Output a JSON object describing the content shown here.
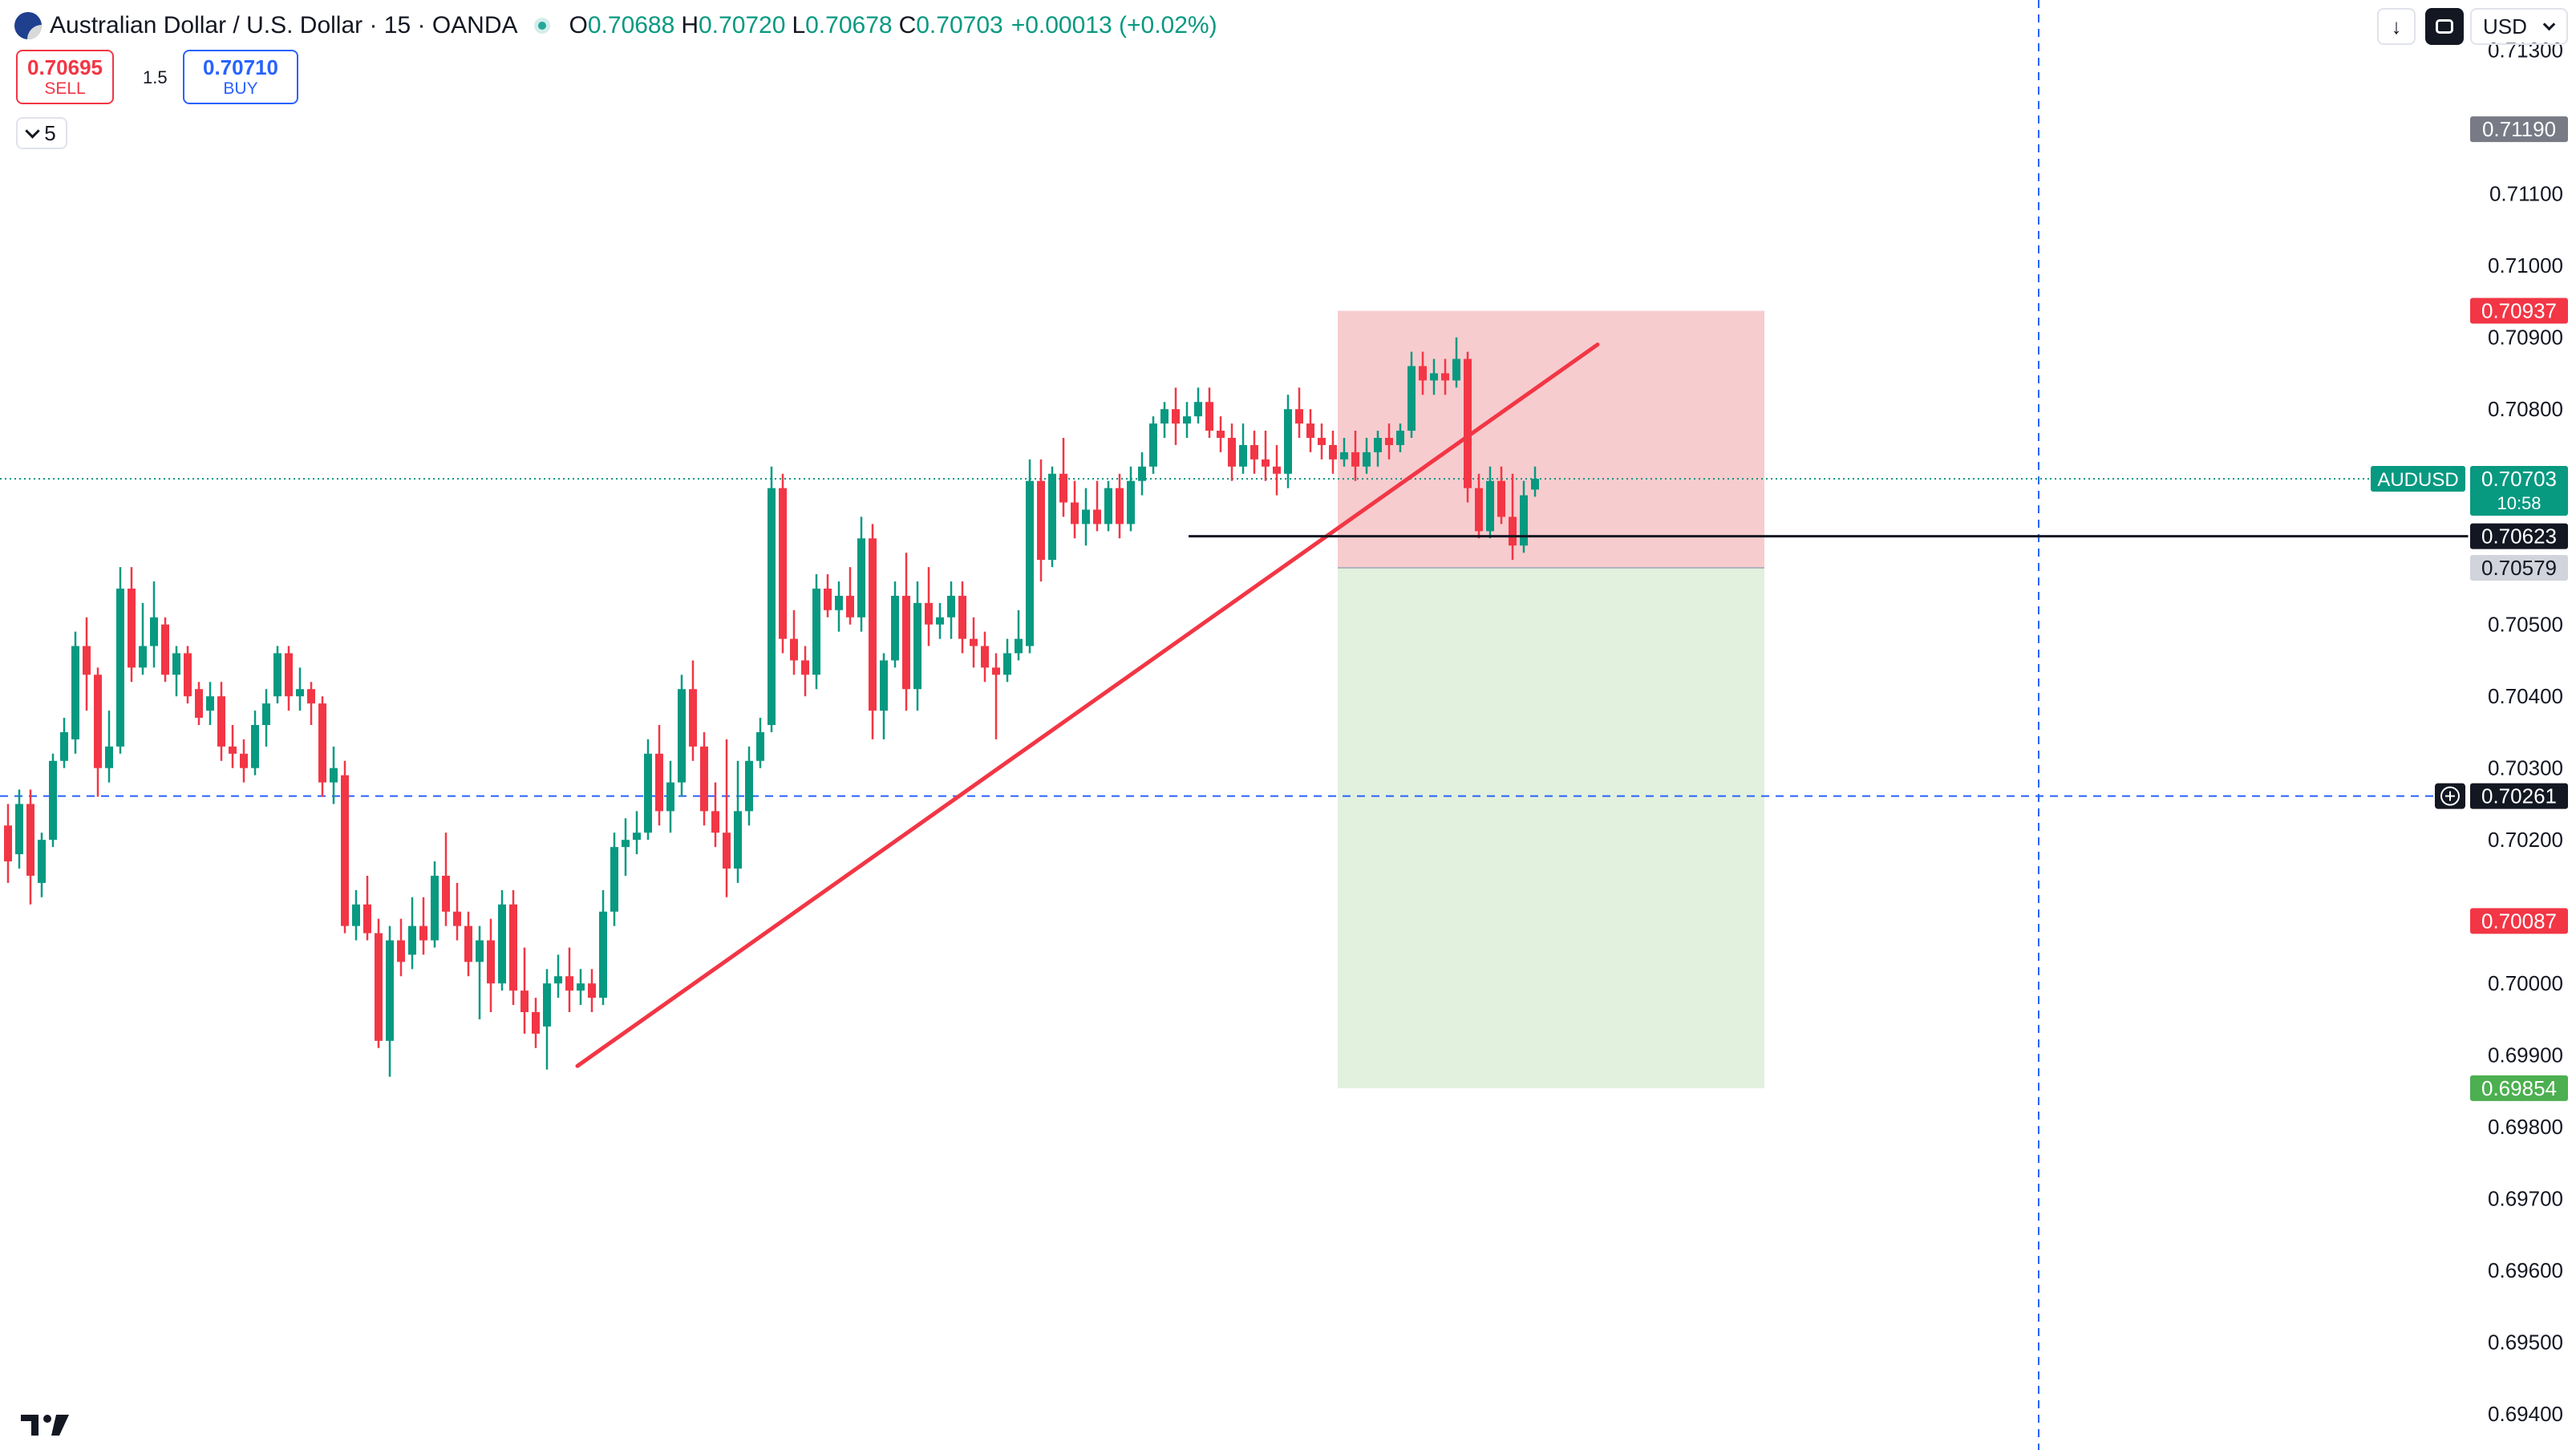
{
  "header": {
    "symbol_title": "Australian Dollar / U.S. Dollar · 15 · OANDA",
    "ohlc": [
      {
        "key": "O",
        "value": "0.70688"
      },
      {
        "key": "H",
        "value": "0.70720"
      },
      {
        "key": "L",
        "value": "0.70678"
      },
      {
        "key": "C",
        "value": "0.70703"
      }
    ],
    "change": "+0.00013 (+0.02%)"
  },
  "trade": {
    "sell_price": "0.70695",
    "sell_label": "SELL",
    "spread": "1.5",
    "buy_price": "0.70710",
    "buy_label": "BUY"
  },
  "indicators_collapse_count": "5",
  "toolbar": {
    "currency": "USD"
  },
  "chart_data": {
    "type": "candlestick",
    "y_ticks": [
      "0.71300",
      "0.71100",
      "0.71000",
      "0.70900",
      "0.70800",
      "0.70500",
      "0.70400",
      "0.70300",
      "0.70200",
      "0.70000",
      "0.69900",
      "0.69800",
      "0.69700",
      "0.69600",
      "0.69500",
      "0.69400"
    ],
    "ylim": [
      0.6935,
      0.7137
    ],
    "price_labels": [
      {
        "name": "alert",
        "value": "0.71190",
        "color": "#787b86"
      },
      {
        "name": "stop-loss",
        "value": "0.70937",
        "color": "#f23645"
      },
      {
        "name": "symbol",
        "symbol": "AUDUSD",
        "value": "0.70703",
        "countdown": "10:58",
        "color": "#089981"
      },
      {
        "name": "horizontal-line",
        "value": "0.70623",
        "color": "#131722"
      },
      {
        "name": "entry",
        "value": "0.70579",
        "color": "#d1d4dc"
      },
      {
        "name": "crosshair",
        "value": "0.70261",
        "color": "#131722"
      },
      {
        "name": "red-level",
        "value": "0.70087",
        "color": "#f23645"
      },
      {
        "name": "take-profit",
        "value": "0.69854",
        "color": "#4caf50"
      }
    ],
    "position": {
      "entry": 0.70579,
      "stop": 0.70937,
      "target": 0.69854,
      "start_index": 117,
      "end_index": 140
    },
    "trendline": {
      "from": {
        "index": 41,
        "price": 0.69885
      },
      "to": {
        "index": 115,
        "price": 0.7089
      }
    },
    "horizontal_line": {
      "price": 0.70623,
      "from_index": 86
    },
    "crosshair": {
      "price": 0.70261,
      "index": 148
    },
    "colors": {
      "up": "#089981",
      "down": "#f23645",
      "trendline": "#f23645"
    },
    "candles": [
      [
        0.7022,
        0.7025,
        0.7014,
        0.7017
      ],
      [
        0.7018,
        0.7027,
        0.7016,
        0.7025
      ],
      [
        0.7025,
        0.7027,
        0.7011,
        0.7015
      ],
      [
        0.7014,
        0.7021,
        0.7012,
        0.702
      ],
      [
        0.702,
        0.7032,
        0.7019,
        0.7031
      ],
      [
        0.7031,
        0.7037,
        0.703,
        0.7035
      ],
      [
        0.7034,
        0.7049,
        0.7032,
        0.7047
      ],
      [
        0.7047,
        0.7051,
        0.7038,
        0.7043
      ],
      [
        0.7043,
        0.7044,
        0.7026,
        0.703
      ],
      [
        0.703,
        0.7038,
        0.7028,
        0.7033
      ],
      [
        0.7033,
        0.7058,
        0.7032,
        0.7055
      ],
      [
        0.7055,
        0.7058,
        0.7042,
        0.7044
      ],
      [
        0.7044,
        0.7053,
        0.7043,
        0.7047
      ],
      [
        0.7047,
        0.7056,
        0.7044,
        0.7051
      ],
      [
        0.705,
        0.7051,
        0.7042,
        0.7043
      ],
      [
        0.7043,
        0.7047,
        0.704,
        0.7046
      ],
      [
        0.7046,
        0.7047,
        0.7039,
        0.704
      ],
      [
        0.7041,
        0.7042,
        0.7036,
        0.7037
      ],
      [
        0.7038,
        0.7042,
        0.7036,
        0.704
      ],
      [
        0.704,
        0.7042,
        0.7031,
        0.7033
      ],
      [
        0.7033,
        0.7036,
        0.703,
        0.7032
      ],
      [
        0.7032,
        0.7034,
        0.7028,
        0.703
      ],
      [
        0.703,
        0.7038,
        0.7029,
        0.7036
      ],
      [
        0.7036,
        0.7041,
        0.7033,
        0.7039
      ],
      [
        0.704,
        0.7047,
        0.7039,
        0.7046
      ],
      [
        0.7046,
        0.7047,
        0.7038,
        0.704
      ],
      [
        0.704,
        0.7044,
        0.7038,
        0.7041
      ],
      [
        0.7041,
        0.7042,
        0.7036,
        0.7039
      ],
      [
        0.7039,
        0.704,
        0.7026,
        0.7028
      ],
      [
        0.7028,
        0.7033,
        0.7025,
        0.703
      ],
      [
        0.7029,
        0.7031,
        0.7007,
        0.7008
      ],
      [
        0.7008,
        0.7013,
        0.7006,
        0.7011
      ],
      [
        0.7011,
        0.7015,
        0.7006,
        0.7007
      ],
      [
        0.7007,
        0.7009,
        0.6991,
        0.6992
      ],
      [
        0.6992,
        0.7008,
        0.6987,
        0.7006
      ],
      [
        0.7006,
        0.7009,
        0.7001,
        0.7003
      ],
      [
        0.7004,
        0.7012,
        0.7002,
        0.7008
      ],
      [
        0.7008,
        0.7012,
        0.7004,
        0.7006
      ],
      [
        0.7006,
        0.7017,
        0.7005,
        0.7015
      ],
      [
        0.7015,
        0.7021,
        0.7008,
        0.701
      ],
      [
        0.701,
        0.7014,
        0.7006,
        0.7008
      ],
      [
        0.7008,
        0.701,
        0.7001,
        0.7003
      ],
      [
        0.7003,
        0.7008,
        0.6995,
        0.7006
      ],
      [
        0.7006,
        0.7009,
        0.6996,
        0.7
      ],
      [
        0.7,
        0.7013,
        0.6999,
        0.7011
      ],
      [
        0.7011,
        0.7013,
        0.6997,
        0.6999
      ],
      [
        0.6999,
        0.7005,
        0.6993,
        0.6996
      ],
      [
        0.6996,
        0.6998,
        0.6991,
        0.6993
      ],
      [
        0.6994,
        0.7002,
        0.6988,
        0.7
      ],
      [
        0.7,
        0.7004,
        0.6998,
        0.7001
      ],
      [
        0.7001,
        0.7005,
        0.6996,
        0.6999
      ],
      [
        0.6999,
        0.7002,
        0.6997,
        0.7
      ],
      [
        0.7,
        0.7002,
        0.6996,
        0.6998
      ],
      [
        0.6998,
        0.7013,
        0.6997,
        0.701
      ],
      [
        0.701,
        0.7021,
        0.7008,
        0.7019
      ],
      [
        0.7019,
        0.7023,
        0.7015,
        0.702
      ],
      [
        0.702,
        0.7024,
        0.7018,
        0.7021
      ],
      [
        0.7021,
        0.7034,
        0.702,
        0.7032
      ],
      [
        0.7032,
        0.7036,
        0.7022,
        0.7024
      ],
      [
        0.7024,
        0.7031,
        0.7021,
        0.7028
      ],
      [
        0.7028,
        0.7043,
        0.7026,
        0.7041
      ],
      [
        0.7041,
        0.7045,
        0.7031,
        0.7033
      ],
      [
        0.7033,
        0.7035,
        0.7022,
        0.7024
      ],
      [
        0.7024,
        0.7028,
        0.7019,
        0.7021
      ],
      [
        0.7021,
        0.7034,
        0.7012,
        0.7016
      ],
      [
        0.7016,
        0.7031,
        0.7014,
        0.7024
      ],
      [
        0.7024,
        0.7033,
        0.7022,
        0.7031
      ],
      [
        0.7031,
        0.7037,
        0.703,
        0.7035
      ],
      [
        0.7036,
        0.7072,
        0.7035,
        0.7069
      ],
      [
        0.7069,
        0.7071,
        0.7046,
        0.7048
      ],
      [
        0.7048,
        0.7052,
        0.7043,
        0.7045
      ],
      [
        0.7045,
        0.7047,
        0.704,
        0.7043
      ],
      [
        0.7043,
        0.7057,
        0.7041,
        0.7055
      ],
      [
        0.7055,
        0.7057,
        0.7051,
        0.7052
      ],
      [
        0.7052,
        0.7056,
        0.7049,
        0.7054
      ],
      [
        0.7054,
        0.7058,
        0.705,
        0.7051
      ],
      [
        0.7051,
        0.7065,
        0.7049,
        0.7062
      ],
      [
        0.7062,
        0.7064,
        0.7034,
        0.7038
      ],
      [
        0.7038,
        0.7046,
        0.7034,
        0.7045
      ],
      [
        0.7045,
        0.7056,
        0.7044,
        0.7054
      ],
      [
        0.7054,
        0.706,
        0.7038,
        0.7041
      ],
      [
        0.7041,
        0.7056,
        0.7038,
        0.7053
      ],
      [
        0.7053,
        0.7058,
        0.7047,
        0.705
      ],
      [
        0.705,
        0.7053,
        0.7048,
        0.7051
      ],
      [
        0.7051,
        0.7056,
        0.7048,
        0.7054
      ],
      [
        0.7054,
        0.7056,
        0.7046,
        0.7048
      ],
      [
        0.7048,
        0.7051,
        0.7044,
        0.7047
      ],
      [
        0.7047,
        0.7049,
        0.7042,
        0.7044
      ],
      [
        0.7044,
        0.7046,
        0.7034,
        0.7043
      ],
      [
        0.7043,
        0.7048,
        0.7042,
        0.7046
      ],
      [
        0.7046,
        0.7052,
        0.7045,
        0.7048
      ],
      [
        0.7047,
        0.7073,
        0.7046,
        0.707
      ],
      [
        0.707,
        0.7073,
        0.7056,
        0.7059
      ],
      [
        0.7059,
        0.7072,
        0.7058,
        0.7071
      ],
      [
        0.7071,
        0.7076,
        0.7065,
        0.7067
      ],
      [
        0.7067,
        0.707,
        0.7062,
        0.7064
      ],
      [
        0.7064,
        0.7069,
        0.7061,
        0.7066
      ],
      [
        0.7066,
        0.707,
        0.7063,
        0.7064
      ],
      [
        0.7064,
        0.707,
        0.7063,
        0.7069
      ],
      [
        0.7069,
        0.7071,
        0.7062,
        0.7064
      ],
      [
        0.7064,
        0.7072,
        0.7063,
        0.707
      ],
      [
        0.707,
        0.7074,
        0.7068,
        0.7072
      ],
      [
        0.7072,
        0.7079,
        0.7071,
        0.7078
      ],
      [
        0.7078,
        0.7081,
        0.7076,
        0.708
      ],
      [
        0.708,
        0.7083,
        0.7075,
        0.7078
      ],
      [
        0.7078,
        0.7081,
        0.7076,
        0.7079
      ],
      [
        0.7079,
        0.7083,
        0.7078,
        0.7081
      ],
      [
        0.7081,
        0.7083,
        0.7076,
        0.7077
      ],
      [
        0.7077,
        0.7079,
        0.7074,
        0.7076
      ],
      [
        0.7076,
        0.7078,
        0.707,
        0.7072
      ],
      [
        0.7072,
        0.7078,
        0.7071,
        0.7075
      ],
      [
        0.7075,
        0.7077,
        0.7071,
        0.7073
      ],
      [
        0.7073,
        0.7077,
        0.707,
        0.7072
      ],
      [
        0.7072,
        0.7075,
        0.7068,
        0.7071
      ],
      [
        0.7071,
        0.7082,
        0.7069,
        0.708
      ],
      [
        0.708,
        0.7083,
        0.7076,
        0.7078
      ],
      [
        0.7078,
        0.708,
        0.7074,
        0.7076
      ],
      [
        0.7076,
        0.7078,
        0.7073,
        0.7075
      ],
      [
        0.7075,
        0.7077,
        0.7071,
        0.7073
      ],
      [
        0.7073,
        0.7076,
        0.7072,
        0.7074
      ],
      [
        0.7074,
        0.7077,
        0.707,
        0.7072
      ],
      [
        0.7072,
        0.7076,
        0.7071,
        0.7074
      ],
      [
        0.7074,
        0.7077,
        0.7072,
        0.7076
      ],
      [
        0.7076,
        0.7078,
        0.7073,
        0.7075
      ],
      [
        0.7075,
        0.7078,
        0.7074,
        0.7077
      ],
      [
        0.7077,
        0.7088,
        0.7076,
        0.7086
      ],
      [
        0.7086,
        0.7088,
        0.7082,
        0.7084
      ],
      [
        0.7084,
        0.7087,
        0.7082,
        0.7085
      ],
      [
        0.7085,
        0.7087,
        0.7082,
        0.7084
      ],
      [
        0.7084,
        0.709,
        0.7083,
        0.7087
      ],
      [
        0.7087,
        0.7088,
        0.7067,
        0.7069
      ],
      [
        0.7069,
        0.7071,
        0.7062,
        0.7063
      ],
      [
        0.7063,
        0.7072,
        0.7062,
        0.707
      ],
      [
        0.707,
        0.7072,
        0.7064,
        0.7065
      ],
      [
        0.7065,
        0.7071,
        0.7059,
        0.7061
      ],
      [
        0.7061,
        0.707,
        0.706,
        0.7068
      ],
      [
        0.70688,
        0.7072,
        0.70678,
        0.70703
      ]
    ]
  }
}
